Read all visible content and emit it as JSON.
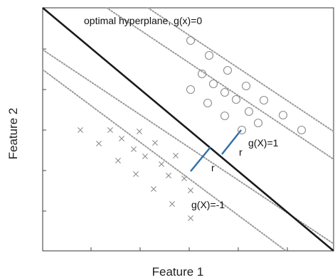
{
  "diagram": {
    "xlabel": "Feature 1",
    "ylabel": "Feature 2",
    "hyperplane_label": "optimal hyperplane, g(x)=0",
    "positive_margin_label": "g(X)=1",
    "negative_margin_label": "g(X)=-1",
    "margin_label_1": "r",
    "margin_label_2": "r",
    "colors": {
      "hyperplane": "#1a1a1a",
      "margin_lines": "#9a9a9a",
      "support_distance": "#2f6fa8",
      "circles": "#8c8c8c",
      "crosses": "#8c8c8c",
      "frame": "#333333"
    },
    "markers": {
      "class_positive": "circle",
      "class_negative": "cross"
    }
  }
}
